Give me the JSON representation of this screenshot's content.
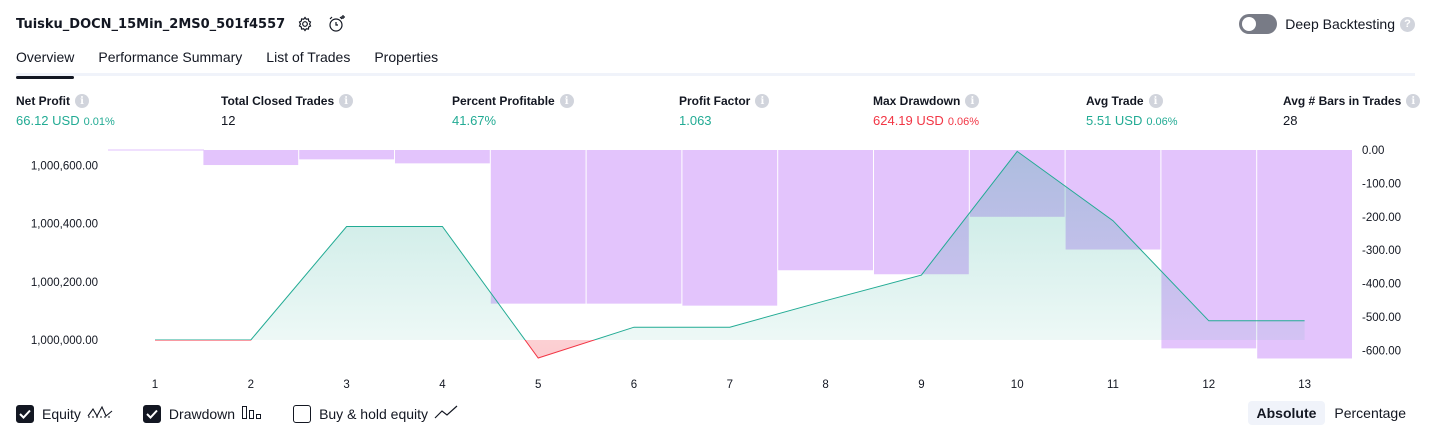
{
  "header": {
    "strategy_name": "Tuisku_DOCN_15Min_2MS0_501f4557",
    "deep_backtesting_label": "Deep Backtesting",
    "deep_backtesting_on": false
  },
  "tabs": [
    {
      "label": "Overview",
      "active": true
    },
    {
      "label": "Performance Summary",
      "active": false
    },
    {
      "label": "List of Trades",
      "active": false
    },
    {
      "label": "Properties",
      "active": false
    }
  ],
  "metrics": [
    {
      "label": "Net Profit",
      "value": "66.12 USD",
      "pct": "0.01%",
      "color": "green"
    },
    {
      "label": "Total Closed Trades",
      "value": "12",
      "pct": "",
      "color": "dark"
    },
    {
      "label": "Percent Profitable",
      "value": "41.67%",
      "pct": "",
      "color": "green"
    },
    {
      "label": "Profit Factor",
      "value": "1.063",
      "pct": "",
      "color": "green"
    },
    {
      "label": "Max Drawdown",
      "value": "624.19 USD",
      "pct": "0.06%",
      "color": "red"
    },
    {
      "label": "Avg Trade",
      "value": "5.51 USD",
      "pct": "0.06%",
      "color": "green"
    },
    {
      "label": "Avg # Bars in Trades",
      "value": "28",
      "pct": "",
      "color": "dark"
    }
  ],
  "chart_data": {
    "type": "line",
    "x": [
      1,
      2,
      3,
      4,
      5,
      6,
      7,
      8,
      9,
      10,
      11,
      12,
      13
    ],
    "series": [
      {
        "name": "Equity",
        "axis": "left",
        "values": [
          1000000.0,
          1000000.0,
          1000390.0,
          1000390.0,
          999938.0,
          1000044.0,
          1000044.0,
          1000135.0,
          1000223.0,
          1000648.0,
          1000410.0,
          1000066.12,
          1000066.12
        ]
      },
      {
        "name": "Drawdown",
        "axis": "right",
        "type": "bar",
        "values": [
          0,
          -45,
          -28,
          -40,
          -460,
          -460,
          -466,
          -360,
          -372,
          -200,
          -298,
          -594,
          -624.19
        ]
      }
    ],
    "y_left_ticks": [
      "1,000,000.00",
      "1,000,200.00",
      "1,000,400.00",
      "1,000,600.00"
    ],
    "y_left_tick_values": [
      1000000,
      1000200,
      1000400,
      1000600
    ],
    "y_right_ticks": [
      "0.00",
      "-100.00",
      "-200.00",
      "-300.00",
      "-400.00",
      "-500.00",
      "-600.00"
    ],
    "y_right_tick_values": [
      0,
      -100,
      -200,
      -300,
      -400,
      -500,
      -600
    ],
    "colors": {
      "equity_line": "#22ab94",
      "equity_loss": "#f23645",
      "drawdown_bar": "#e1c1fc"
    },
    "grid": false
  },
  "legend": [
    {
      "label": "Equity",
      "checked": true,
      "icon": "equity-wave-icon"
    },
    {
      "label": "Drawdown",
      "checked": true,
      "icon": "bars-icon"
    },
    {
      "label": "Buy & hold equity",
      "checked": false,
      "icon": "trend-line-icon"
    }
  ],
  "modes": [
    {
      "label": "Absolute",
      "active": true
    },
    {
      "label": "Percentage",
      "active": false
    }
  ]
}
